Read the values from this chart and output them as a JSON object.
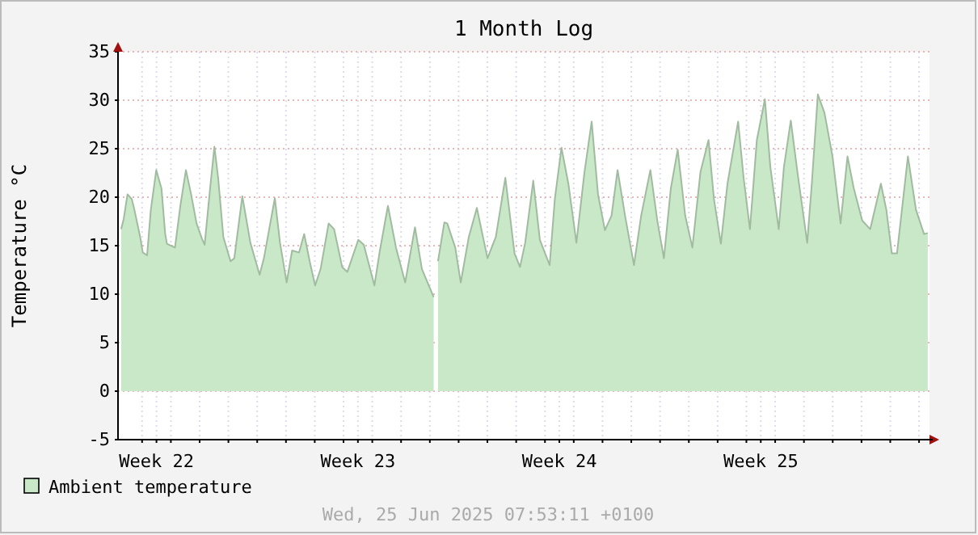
{
  "chart_data": {
    "type": "area",
    "title": "1 Month Log",
    "ylabel": "Temperature °C",
    "x": [
      "2025-05-28T06:34",
      "2025-05-28T08:43",
      "2025-05-28T11:50",
      "2025-05-28T15:26",
      "2025-05-28T17:36",
      "2025-05-28T22:24",
      "2025-05-29T00:34",
      "2025-05-29T04:10",
      "2025-05-29T07:17",
      "2025-05-29T11:50",
      "2025-05-29T16:10",
      "2025-05-29T19:17",
      "2025-05-29T20:43",
      "2025-05-30T03:26",
      "2025-05-30T08:00",
      "2025-05-30T12:34",
      "2025-05-30T16:53",
      "2025-05-30T21:26",
      "2025-05-31T02:00",
      "2025-05-31T04:10",
      "2025-05-31T08:43",
      "2025-05-31T12:19",
      "2025-05-31T15:26",
      "2025-05-31T19:46",
      "2025-06-01T01:46",
      "2025-06-01T04:53",
      "2025-06-01T11:36",
      "2025-06-01T18:19",
      "2025-06-02T02:00",
      "2025-06-02T05:36",
      "2025-06-02T14:43",
      "2025-06-02T19:02",
      "2025-06-03T00:34",
      "2025-06-03T05:07",
      "2025-06-03T10:53",
      "2025-06-03T15:12",
      "2025-06-03T19:46",
      "2025-06-04T00:19",
      "2025-06-04T04:53",
      "2025-06-04T11:36",
      "2025-06-04T16:10",
      "2025-06-04T22:53",
      "2025-06-05T03:12",
      "2025-06-05T12:19",
      "2025-06-05T16:53",
      "2025-06-06T01:46",
      "2025-06-06T06:19",
      "2025-06-06T13:02",
      "2025-06-06T19:46",
      "2025-06-07T03:26",
      "2025-06-07T11:36",
      "2025-06-07T17:22",
      "2025-06-08T03:12",
      "2025-06-08T04:24",
      "2025-06-08T06:48",
      "2025-06-08T12:05",
      "2025-06-08T14:29",
      "2025-06-08T21:12",
      "2025-06-09T01:46",
      "2025-06-09T08:29",
      "2025-06-09T15:12",
      "2025-06-10T00:05",
      "2025-06-10T07:02",
      "2025-06-10T14:58",
      "2025-06-10T22:38",
      "2025-06-11T03:12",
      "2025-06-11T07:31",
      "2025-06-11T14:14",
      "2025-06-11T19:46",
      "2025-06-12T03:55",
      "2025-06-12T08:14",
      "2025-06-12T13:46",
      "2025-06-12T19:31",
      "2025-06-13T02:14",
      "2025-06-13T08:58",
      "2025-06-13T14:58",
      "2025-06-13T20:14",
      "2025-06-14T02:00",
      "2025-06-14T07:31",
      "2025-06-14T12:34",
      "2025-06-14T18:48",
      "2025-06-15T02:14",
      "2025-06-15T08:14",
      "2025-06-15T15:55",
      "2025-06-15T21:41",
      "2025-06-16T03:12",
      "2025-06-16T08:58",
      "2025-06-16T14:43",
      "2025-06-16T20:58",
      "2025-06-17T02:58",
      "2025-06-17T09:41",
      "2025-06-17T16:24",
      "2025-06-17T20:58",
      "2025-06-18T02:43",
      "2025-06-18T08:14",
      "2025-06-18T17:07",
      "2025-06-18T21:41",
      "2025-06-19T02:58",
      "2025-06-19T08:43",
      "2025-06-19T15:26",
      "2025-06-19T20:00",
      "2025-06-20T02:58",
      "2025-06-20T07:17",
      "2025-06-20T13:02",
      "2025-06-20T18:34",
      "2025-06-21T02:43",
      "2025-06-21T06:34",
      "2025-06-21T11:36",
      "2025-06-21T17:07",
      "2025-06-21T23:50",
      "2025-06-22T06:34",
      "2025-06-22T12:19",
      "2025-06-22T17:36",
      "2025-06-23T00:34",
      "2025-06-23T07:17",
      "2025-06-23T16:10",
      "2025-06-23T20:43",
      "2025-06-24T01:17",
      "2025-06-24T05:36",
      "2025-06-24T10:10",
      "2025-06-24T14:43",
      "2025-06-24T21:26",
      "2025-06-25T04:10",
      "2025-06-25T07:17"
    ],
    "series": [
      {
        "name": "Ambient temperature",
        "color": "#c8e8c8",
        "values": [
          16.7,
          17.8,
          20.3,
          19.8,
          18.7,
          15.9,
          14.3,
          14.0,
          18.7,
          22.8,
          20.9,
          16.2,
          15.2,
          14.8,
          19.2,
          22.8,
          20.3,
          17.3,
          15.7,
          15.1,
          20.9,
          25.2,
          22.0,
          15.9,
          13.4,
          13.7,
          20.1,
          15.3,
          12.0,
          13.7,
          19.9,
          15.3,
          11.2,
          14.5,
          14.3,
          16.2,
          13.4,
          10.9,
          12.6,
          17.3,
          16.7,
          12.8,
          12.3,
          15.6,
          15.1,
          10.9,
          14.5,
          19.1,
          14.8,
          11.2,
          16.9,
          12.6,
          9.7,
          null,
          13.4,
          17.4,
          17.3,
          14.8,
          11.2,
          15.9,
          18.9,
          13.7,
          15.9,
          22.0,
          14.2,
          12.8,
          15.3,
          21.7,
          15.6,
          13.0,
          19.8,
          25.1,
          21.4,
          15.3,
          22.6,
          27.8,
          20.3,
          16.6,
          18.1,
          22.8,
          18.1,
          13.0,
          18.1,
          22.8,
          17.6,
          13.7,
          20.9,
          24.9,
          18.1,
          14.8,
          22.6,
          25.9,
          19.8,
          15.2,
          21.4,
          27.8,
          22.0,
          16.7,
          25.9,
          30.1,
          23.1,
          16.7,
          23.1,
          27.9,
          22.6,
          15.3,
          21.4,
          30.6,
          28.7,
          24.2,
          17.3,
          24.2,
          20.9,
          17.6,
          16.7,
          21.4,
          18.7,
          14.2,
          14.2,
          19.2,
          24.2,
          18.7,
          16.2,
          16.3
        ]
      }
    ],
    "xlim": [
      "2025-05-28T03:55",
      "2025-06-25T08:43"
    ],
    "xticks": [
      {
        "value": "2025-05-29",
        "label": null
      },
      {
        "value": "2025-05-29T12:00",
        "label": "Week 22"
      },
      {
        "value": "2025-05-30",
        "label": null
      },
      {
        "value": "2025-05-31",
        "label": null
      },
      {
        "value": "2025-06-01",
        "label": null
      },
      {
        "value": "2025-06-02",
        "label": null
      },
      {
        "value": "2025-06-03",
        "label": null
      },
      {
        "value": "2025-06-04",
        "label": null
      },
      {
        "value": "2025-06-05",
        "label": null
      },
      {
        "value": "2025-06-05T12:00",
        "label": "Week 23"
      },
      {
        "value": "2025-06-06",
        "label": null
      },
      {
        "value": "2025-06-07",
        "label": null
      },
      {
        "value": "2025-06-08",
        "label": null
      },
      {
        "value": "2025-06-09",
        "label": null
      },
      {
        "value": "2025-06-10",
        "label": null
      },
      {
        "value": "2025-06-11",
        "label": null
      },
      {
        "value": "2025-06-12",
        "label": null
      },
      {
        "value": "2025-06-12T12:00",
        "label": "Week 24"
      },
      {
        "value": "2025-06-13",
        "label": null
      },
      {
        "value": "2025-06-14",
        "label": null
      },
      {
        "value": "2025-06-15",
        "label": null
      },
      {
        "value": "2025-06-16",
        "label": null
      },
      {
        "value": "2025-06-17",
        "label": null
      },
      {
        "value": "2025-06-18",
        "label": null
      },
      {
        "value": "2025-06-19",
        "label": null
      },
      {
        "value": "2025-06-19T12:00",
        "label": "Week 25"
      },
      {
        "value": "2025-06-20",
        "label": null
      },
      {
        "value": "2025-06-21",
        "label": null
      },
      {
        "value": "2025-06-22",
        "label": null
      },
      {
        "value": "2025-06-23",
        "label": null
      },
      {
        "value": "2025-06-24",
        "label": null
      },
      {
        "value": "2025-06-25",
        "label": null
      }
    ],
    "ylim": [
      -5,
      35
    ],
    "yticks": [
      -5,
      0,
      5,
      10,
      15,
      20,
      25,
      30,
      35
    ],
    "grid": true,
    "legend": "bottom left",
    "annotations": [
      "Wed, 25 Jun 2025 07:53:11 +0100"
    ]
  }
}
